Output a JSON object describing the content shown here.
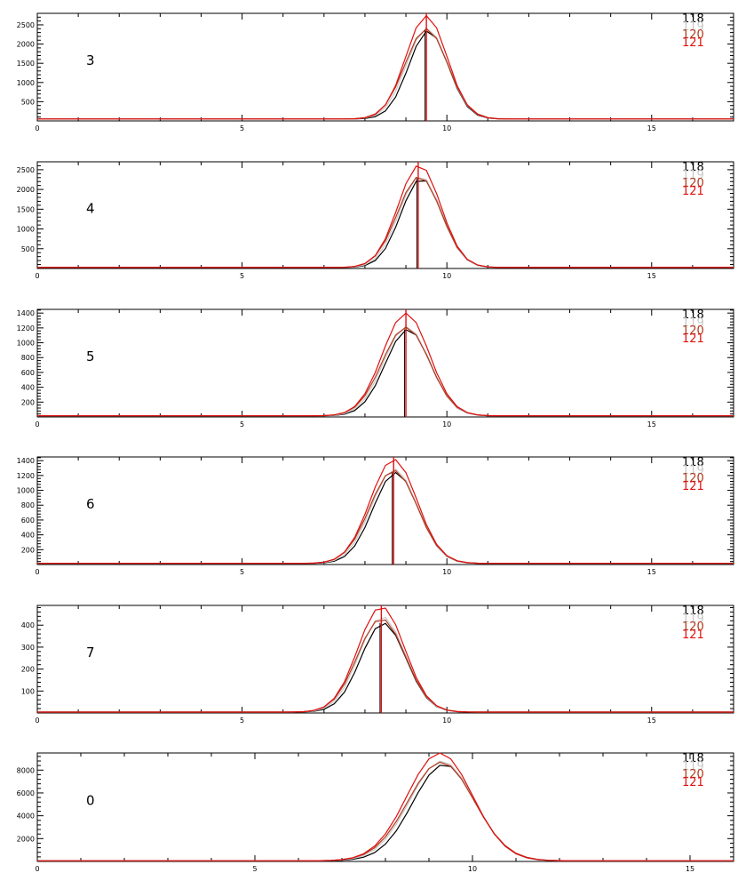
{
  "colors": {
    "s118": "#000000",
    "s119": "#c8c8c8",
    "s120": "#b03a1e",
    "s121": "#e01010",
    "axis": "#000000"
  },
  "legend": [
    "118",
    "119",
    "120",
    "121"
  ],
  "chart_data": [
    {
      "type": "line",
      "panel_label": "3",
      "xlim": [
        0,
        17
      ],
      "ylim": [
        0,
        2800
      ],
      "xticks": [
        0,
        5,
        10,
        15
      ],
      "yticks": [
        500,
        1000,
        1500,
        2000,
        2500
      ],
      "x_step": 0.25,
      "grid": false,
      "marker_x": 9.5,
      "series": [
        {
          "name": "118",
          "color_key": "s118",
          "peak": 2350,
          "center": 9.55,
          "sigma": 0.48,
          "base": 50
        },
        {
          "name": "119",
          "color_key": "s119",
          "peak": 2420,
          "center": 9.52,
          "sigma": 0.5,
          "base": 50
        },
        {
          "name": "120",
          "color_key": "s120",
          "peak": 2400,
          "center": 9.5,
          "sigma": 0.52,
          "base": 50
        },
        {
          "name": "121",
          "color_key": "s121",
          "peak": 2740,
          "center": 9.5,
          "sigma": 0.5,
          "base": 50
        }
      ]
    },
    {
      "type": "line",
      "panel_label": "4",
      "xlim": [
        0,
        17
      ],
      "ylim": [
        0,
        2700
      ],
      "xticks": [
        0,
        5,
        10,
        15
      ],
      "yticks": [
        500,
        1000,
        1500,
        2000,
        2500
      ],
      "x_step": 0.25,
      "grid": false,
      "marker_x": 9.3,
      "series": [
        {
          "name": "118",
          "color_key": "s118",
          "peak": 2280,
          "center": 9.38,
          "sigma": 0.5,
          "base": 25
        },
        {
          "name": "119",
          "color_key": "s119",
          "peak": 2350,
          "center": 9.35,
          "sigma": 0.51,
          "base": 25
        },
        {
          "name": "120",
          "color_key": "s120",
          "peak": 2330,
          "center": 9.33,
          "sigma": 0.53,
          "base": 25
        },
        {
          "name": "121",
          "color_key": "s121",
          "peak": 2620,
          "center": 9.33,
          "sigma": 0.52,
          "base": 25
        }
      ]
    },
    {
      "type": "line",
      "panel_label": "5",
      "xlim": [
        0,
        17
      ],
      "ylim": [
        0,
        1450
      ],
      "xticks": [
        0,
        5,
        10,
        15
      ],
      "yticks": [
        200,
        400,
        600,
        800,
        1000,
        1200,
        1400
      ],
      "x_step": 0.25,
      "grid": false,
      "marker_x": 9.0,
      "series": [
        {
          "name": "118",
          "color_key": "s118",
          "peak": 1180,
          "center": 9.05,
          "sigma": 0.55,
          "base": 15
        },
        {
          "name": "119",
          "color_key": "s119",
          "peak": 1220,
          "center": 9.02,
          "sigma": 0.56,
          "base": 15
        },
        {
          "name": "120",
          "color_key": "s120",
          "peak": 1210,
          "center": 9.0,
          "sigma": 0.58,
          "base": 15
        },
        {
          "name": "121",
          "color_key": "s121",
          "peak": 1400,
          "center": 9.0,
          "sigma": 0.57,
          "base": 15
        }
      ]
    },
    {
      "type": "line",
      "panel_label": "6",
      "xlim": [
        0,
        17
      ],
      "ylim": [
        0,
        1450
      ],
      "xticks": [
        0,
        5,
        10,
        15
      ],
      "yticks": [
        200,
        400,
        600,
        800,
        1000,
        1200,
        1400
      ],
      "x_step": 0.25,
      "grid": false,
      "marker_x": 8.7,
      "series": [
        {
          "name": "118",
          "color_key": "s118",
          "peak": 1240,
          "center": 8.75,
          "sigma": 0.55,
          "base": 15
        },
        {
          "name": "119",
          "color_key": "s119",
          "peak": 1290,
          "center": 8.72,
          "sigma": 0.56,
          "base": 15
        },
        {
          "name": "120",
          "color_key": "s120",
          "peak": 1270,
          "center": 8.7,
          "sigma": 0.58,
          "base": 15
        },
        {
          "name": "121",
          "color_key": "s121",
          "peak": 1420,
          "center": 8.7,
          "sigma": 0.57,
          "base": 15
        }
      ]
    },
    {
      "type": "line",
      "panel_label": "7",
      "xlim": [
        0,
        17
      ],
      "ylim": [
        0,
        490
      ],
      "xticks": [
        0,
        5,
        10,
        15
      ],
      "yticks": [
        100,
        200,
        300,
        400
      ],
      "x_step": 0.25,
      "grid": false,
      "marker_x": 8.4,
      "series": [
        {
          "name": "118",
          "color_key": "s118",
          "peak": 410,
          "center": 8.45,
          "sigma": 0.55,
          "base": 4
        },
        {
          "name": "119",
          "color_key": "s119",
          "peak": 440,
          "center": 8.42,
          "sigma": 0.56,
          "base": 4
        },
        {
          "name": "120",
          "color_key": "s120",
          "peak": 430,
          "center": 8.4,
          "sigma": 0.58,
          "base": 4
        },
        {
          "name": "121",
          "color_key": "s121",
          "peak": 485,
          "center": 8.4,
          "sigma": 0.57,
          "base": 4
        }
      ]
    },
    {
      "type": "line",
      "panel_label": "0",
      "xlim": [
        0,
        16
      ],
      "ylim": [
        0,
        9500
      ],
      "xticks": [
        0,
        5,
        10,
        15
      ],
      "yticks": [
        2000,
        4000,
        6000,
        8000
      ],
      "x_step": 0.25,
      "grid": false,
      "marker_x": null,
      "series": [
        {
          "name": "118",
          "color_key": "s118",
          "peak": 8500,
          "center": 9.35,
          "sigma": 0.72,
          "base": 60
        },
        {
          "name": "119",
          "color_key": "s119",
          "peak": 8800,
          "center": 9.3,
          "sigma": 0.74,
          "base": 60
        },
        {
          "name": "120",
          "color_key": "s120",
          "peak": 8700,
          "center": 9.28,
          "sigma": 0.76,
          "base": 60
        },
        {
          "name": "121",
          "color_key": "s121",
          "peak": 9500,
          "center": 9.25,
          "sigma": 0.75,
          "base": 60
        }
      ]
    }
  ]
}
